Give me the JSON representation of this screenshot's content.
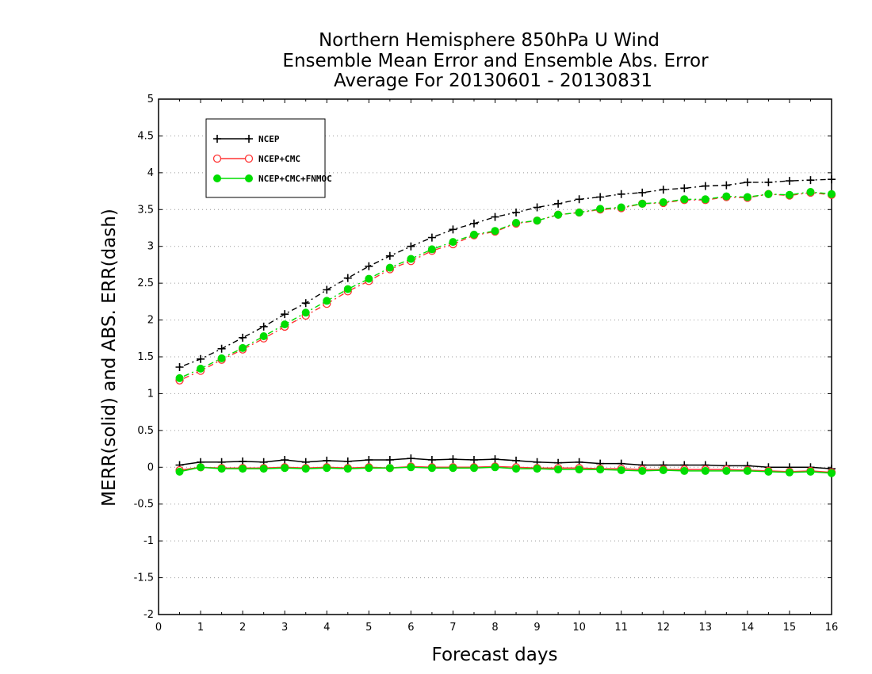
{
  "chart_data": {
    "type": "line",
    "title": [
      "Northern Hemisphere 850hPa U Wind",
      "Ensemble Mean Error and Ensemble Abs. Error",
      "Average For 20130601 - 20130831"
    ],
    "xlabel": "Forecast days",
    "ylabel": "MERR(solid) and ABS. ERR(dash)",
    "xlim": [
      0,
      16
    ],
    "ylim": [
      -2,
      5
    ],
    "x_ticks": [
      "0",
      "1",
      "2",
      "3",
      "4",
      "5",
      "6",
      "7",
      "8",
      "9",
      "10",
      "11",
      "12",
      "13",
      "14",
      "15",
      "16"
    ],
    "y_ticks": [
      "-2",
      "-1.5",
      "-1",
      "-0.5",
      "0",
      "0.5",
      "1",
      "1.5",
      "2",
      "2.5",
      "3",
      "3.5",
      "4",
      "4.5",
      "5"
    ],
    "grid": "horizontal-dotted",
    "legend_position": "top-left",
    "x": [
      0.5,
      1,
      1.5,
      2,
      2.5,
      3,
      3.5,
      4,
      4.5,
      5,
      5.5,
      6,
      6.5,
      7,
      7.5,
      8,
      8.5,
      9,
      9.5,
      10,
      10.5,
      11,
      11.5,
      12,
      12.5,
      13,
      13.5,
      14,
      14.5,
      15,
      15.5,
      16
    ],
    "series": [
      {
        "name": "NCEP",
        "color": "#000000",
        "marker": "plus",
        "abs_err": [
          1.36,
          1.47,
          1.61,
          1.76,
          1.91,
          2.08,
          2.23,
          2.41,
          2.57,
          2.73,
          2.87,
          3.0,
          3.12,
          3.23,
          3.31,
          3.4,
          3.46,
          3.53,
          3.58,
          3.64,
          3.67,
          3.71,
          3.73,
          3.77,
          3.79,
          3.82,
          3.83,
          3.87,
          3.87,
          3.89,
          3.9,
          3.91
        ],
        "mean_err": [
          0.03,
          0.07,
          0.07,
          0.08,
          0.07,
          0.1,
          0.07,
          0.09,
          0.08,
          0.1,
          0.1,
          0.12,
          0.1,
          0.11,
          0.1,
          0.11,
          0.09,
          0.07,
          0.06,
          0.07,
          0.05,
          0.05,
          0.03,
          0.03,
          0.03,
          0.03,
          0.02,
          0.02,
          0.0,
          0.0,
          0.0,
          -0.02
        ]
      },
      {
        "name": "NCEP+CMC",
        "color": "#ff3333",
        "marker": "open-circle",
        "abs_err": [
          1.18,
          1.31,
          1.46,
          1.6,
          1.75,
          1.91,
          2.06,
          2.22,
          2.39,
          2.53,
          2.69,
          2.8,
          2.94,
          3.03,
          3.15,
          3.2,
          3.31,
          3.35,
          3.43,
          3.46,
          3.5,
          3.52,
          3.58,
          3.59,
          3.63,
          3.63,
          3.67,
          3.66,
          3.71,
          3.69,
          3.73,
          3.7
        ],
        "mean_err": [
          -0.04,
          0.0,
          -0.01,
          -0.01,
          -0.01,
          0.0,
          -0.01,
          0.0,
          -0.01,
          0.0,
          -0.01,
          0.01,
          0.0,
          0.0,
          0.0,
          0.01,
          0.0,
          -0.01,
          -0.01,
          -0.01,
          -0.02,
          -0.02,
          -0.03,
          -0.03,
          -0.03,
          -0.03,
          -0.03,
          -0.04,
          -0.05,
          -0.06,
          -0.05,
          -0.07
        ]
      },
      {
        "name": "NCEP+CMC+FNMOC",
        "color": "#00dd00",
        "marker": "filled-circle",
        "abs_err": [
          1.21,
          1.34,
          1.48,
          1.62,
          1.78,
          1.94,
          2.1,
          2.26,
          2.42,
          2.56,
          2.71,
          2.83,
          2.96,
          3.06,
          3.16,
          3.21,
          3.32,
          3.35,
          3.43,
          3.46,
          3.51,
          3.53,
          3.58,
          3.6,
          3.64,
          3.64,
          3.68,
          3.67,
          3.71,
          3.7,
          3.74,
          3.71
        ],
        "mean_err": [
          -0.06,
          0.0,
          -0.02,
          -0.02,
          -0.02,
          -0.01,
          -0.02,
          -0.01,
          -0.02,
          -0.01,
          -0.01,
          0.0,
          -0.01,
          -0.01,
          -0.01,
          0.0,
          -0.02,
          -0.02,
          -0.03,
          -0.03,
          -0.03,
          -0.04,
          -0.05,
          -0.04,
          -0.05,
          -0.05,
          -0.05,
          -0.05,
          -0.06,
          -0.07,
          -0.06,
          -0.08
        ]
      }
    ]
  }
}
